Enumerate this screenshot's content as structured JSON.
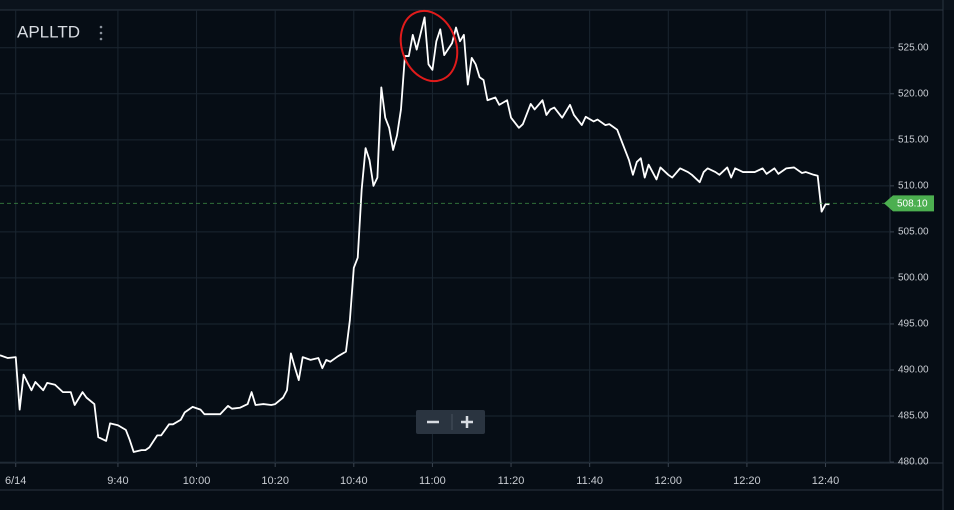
{
  "chart_data": {
    "type": "line",
    "title": "APLLTD",
    "x": [
      550,
      552,
      554,
      555,
      556,
      558,
      559,
      561,
      562,
      564,
      566,
      568,
      569,
      571,
      572,
      574,
      575,
      577,
      578,
      580,
      582,
      583,
      584,
      586,
      587,
      588,
      590,
      591,
      593,
      594,
      596,
      597,
      599,
      601,
      602,
      604,
      606,
      608,
      609,
      611,
      613,
      614,
      615,
      617,
      619,
      620,
      622,
      623,
      624,
      625,
      626,
      627,
      629,
      631,
      632,
      633,
      634,
      636,
      638,
      639,
      640,
      641,
      642,
      643,
      644,
      645,
      646,
      647,
      648,
      649,
      650,
      651,
      652,
      653,
      654,
      655,
      656,
      658,
      659,
      660,
      661,
      662,
      663,
      665,
      666,
      667,
      668,
      669,
      670,
      671,
      672,
      673,
      674,
      676,
      677,
      679,
      680,
      682,
      683,
      685,
      686,
      688,
      689,
      690,
      691,
      693,
      695,
      696,
      698,
      699,
      701,
      702,
      704,
      705,
      707,
      708,
      710,
      711,
      712,
      713,
      714,
      715,
      717,
      718,
      720,
      721,
      723,
      725,
      726,
      728,
      729,
      730,
      732,
      733,
      735,
      736,
      737,
      739,
      740,
      742,
      744,
      745,
      747,
      748,
      750,
      752,
      754,
      755,
      757,
      758,
      759,
      760,
      761
    ],
    "values": [
      491.6,
      491.3,
      491.4,
      485.7,
      489.5,
      487.8,
      488.7,
      487.8,
      488.6,
      488.4,
      487.6,
      487.6,
      486.2,
      487.6,
      487.0,
      486.3,
      482.7,
      482.3,
      484.2,
      484.0,
      483.5,
      482.4,
      481.1,
      481.3,
      481.3,
      481.6,
      482.9,
      482.9,
      484.1,
      484.1,
      484.6,
      485.4,
      486.0,
      485.7,
      485.2,
      485.2,
      485.2,
      486.1,
      485.8,
      485.9,
      486.3,
      487.6,
      486.2,
      486.3,
      486.2,
      486.3,
      487.0,
      487.8,
      491.8,
      490.3,
      488.9,
      491.4,
      491.1,
      491.3,
      490.2,
      491.1,
      490.9,
      491.5,
      492.0,
      495.4,
      501.1,
      502.2,
      509.6,
      514.1,
      512.8,
      510.0,
      510.9,
      520.7,
      517.4,
      516.3,
      513.9,
      515.5,
      518.3,
      524.1,
      524.1,
      526.4,
      524.8,
      528.3,
      523.2,
      522.6,
      525.7,
      527.0,
      524.2,
      525.5,
      527.2,
      525.7,
      526.4,
      521.0,
      523.9,
      523.2,
      521.8,
      521.5,
      519.3,
      519.6,
      518.8,
      519.3,
      517.4,
      516.3,
      516.7,
      518.9,
      518.3,
      519.3,
      517.7,
      518.3,
      518.5,
      517.4,
      518.8,
      517.7,
      516.6,
      517.5,
      517.0,
      517.2,
      516.6,
      516.7,
      516.1,
      515.0,
      512.8,
      511.2,
      512.6,
      513.0,
      510.9,
      512.3,
      510.7,
      512.0,
      511.2,
      510.9,
      511.9,
      511.5,
      511.2,
      510.4,
      511.5,
      511.9,
      511.5,
      511.2,
      512.0,
      510.9,
      511.9,
      511.5,
      511.5,
      511.5,
      511.9,
      511.3,
      511.9,
      511.3,
      511.9,
      512.0,
      511.4,
      511.5,
      511.2,
      511.1,
      507.2,
      508.0,
      508.0
    ],
    "color": "#ffffff",
    "last_price": {
      "value": 508.1,
      "label": "508.10"
    },
    "last_price_color": "#4caf50",
    "xlim": [
      550,
      776.4
    ],
    "xticks": [
      {
        "value": 554,
        "label": "6/14"
      },
      {
        "value": 580,
        "label": "9:40"
      },
      {
        "value": 600,
        "label": "10:00"
      },
      {
        "value": 620,
        "label": "10:20"
      },
      {
        "value": 640,
        "label": "10:40"
      },
      {
        "value": 660,
        "label": "11:00"
      },
      {
        "value": 680,
        "label": "11:20"
      },
      {
        "value": 700,
        "label": "11:40"
      },
      {
        "value": 720,
        "label": "12:00"
      },
      {
        "value": 740,
        "label": "12:20"
      },
      {
        "value": 760,
        "label": "12:40"
      }
    ],
    "ylim": [
      479.9,
      529.1
    ],
    "yticks": [
      {
        "value": 480,
        "label": "480.00"
      },
      {
        "value": 485,
        "label": "485.00"
      },
      {
        "value": 490,
        "label": "490.00"
      },
      {
        "value": 495,
        "label": "495.00"
      },
      {
        "value": 500,
        "label": "500.00"
      },
      {
        "value": 505,
        "label": "505.00"
      },
      {
        "value": 510,
        "label": "510.00"
      },
      {
        "value": 515,
        "label": "515.00"
      },
      {
        "value": 520,
        "label": "520.00"
      },
      {
        "value": 525,
        "label": "525.00"
      }
    ],
    "grid": true
  }
}
